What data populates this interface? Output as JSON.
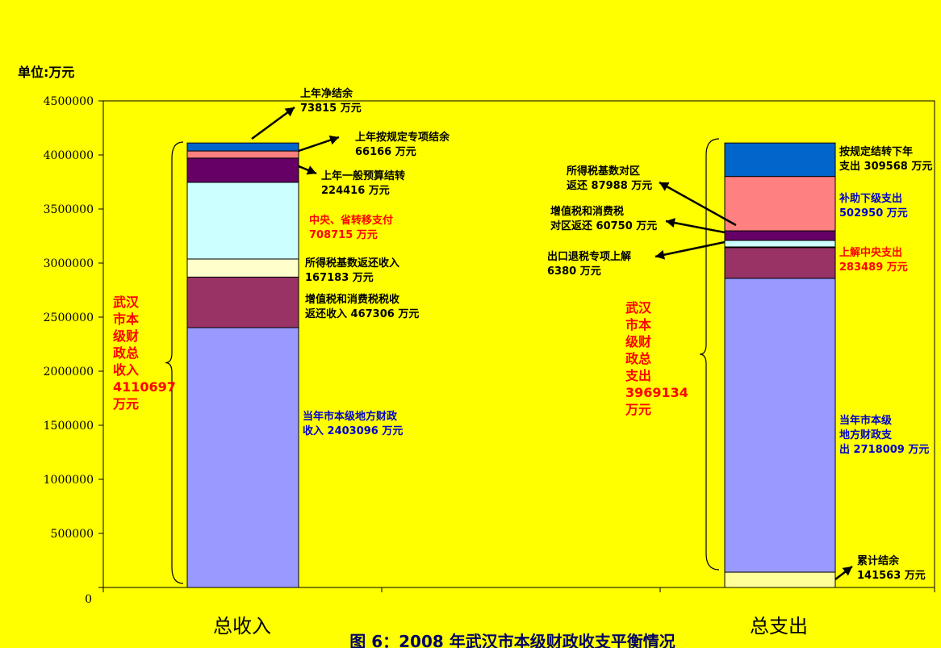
{
  "chart_data": {
    "type": "bar",
    "stacked": true,
    "title": "图 6：2008 年武汉市本级财政收支平衡情况",
    "ylabel": "单位:万元",
    "ylim": [
      0,
      4500000
    ],
    "yticks": [
      0,
      500000,
      1000000,
      1500000,
      2000000,
      2500000,
      3000000,
      3500000,
      4000000,
      4500000
    ],
    "categories": [
      "总收入",
      "总支出"
    ],
    "bars": [
      {
        "category": "总收入",
        "segments": [
          {
            "value": 2403096,
            "color": "#9999ff",
            "label": [
              "当年市本级地方财政",
              "收入 2403096 万元"
            ],
            "label_color": "#0000cc"
          },
          {
            "value": 467306,
            "color": "#993366",
            "label": [
              "增值税和消费税税收",
              "返还收入 467306 万元"
            ],
            "label_color": "#000000"
          },
          {
            "value": 167183,
            "color": "#ffffcc",
            "label": [
              "所得税基数返还收入",
              "167183 万元"
            ],
            "label_color": "#000000"
          },
          {
            "value": 708715,
            "color": "#ccffff",
            "label": [
              "中央、省转移支付",
              "708715 万元"
            ],
            "label_color": "#ff0000"
          },
          {
            "value": 224416,
            "color": "#660066",
            "label": [
              "上年一般预算结转",
              "224416 万元"
            ],
            "label_color": "#000000"
          },
          {
            "value": 66166,
            "color": "#ff8080",
            "label": [
              "上年按规定专项结余",
              "66166 万元"
            ],
            "label_color": "#000000"
          },
          {
            "value": 73815,
            "color": "#0066cc",
            "label": [
              "上年净结余",
              "73815 万元"
            ],
            "label_color": "#000000"
          }
        ],
        "total_label": [
          "武汉",
          "市本",
          "级财",
          "政总",
          "收入",
          "4110697",
          "万元"
        ]
      },
      {
        "category": "总支出",
        "segments": [
          {
            "value": 141563,
            "color": "#ffff99",
            "label": [
              "累计结余",
              "141563 万元"
            ],
            "label_color": "#000000"
          },
          {
            "value": 2718009,
            "color": "#9999ff",
            "label": [
              "当年市本级",
              "地方财政支",
              "出 2718009 万元"
            ],
            "label_color": "#0000cc"
          },
          {
            "value": 283489,
            "color": "#993366",
            "label": [
              "上解中央支出",
              "283489 万元"
            ],
            "label_color": "#ff0000"
          },
          {
            "value": 6380,
            "color": "#ffffcc",
            "label": [
              "出口退税专项上解",
              "6380 万元"
            ],
            "label_color": "#000000"
          },
          {
            "value": 60750,
            "color": "#ccffff",
            "label": [
              "增值税和消费税",
              "对区返还 60750 万元"
            ],
            "label_color": "#000000"
          },
          {
            "value": 87988,
            "color": "#660066",
            "label": [
              "所得税基数对区",
              "返还 87988 万元"
            ],
            "label_color": "#000000"
          },
          {
            "value": 502950,
            "color": "#ff8080",
            "label": [
              "补助下级支出",
              "502950 万元"
            ],
            "label_color": "#0000cc"
          },
          {
            "value": 309568,
            "color": "#0066cc",
            "label": [
              "按规定结转下年",
              "支出 309568 万元"
            ],
            "label_color": "#000000"
          }
        ],
        "total_label": [
          "武汉",
          "市本",
          "级财",
          "政总",
          "支出",
          "3969134",
          "万元"
        ]
      }
    ]
  },
  "colors": {
    "background": "#ffff00",
    "title": "#000066"
  }
}
